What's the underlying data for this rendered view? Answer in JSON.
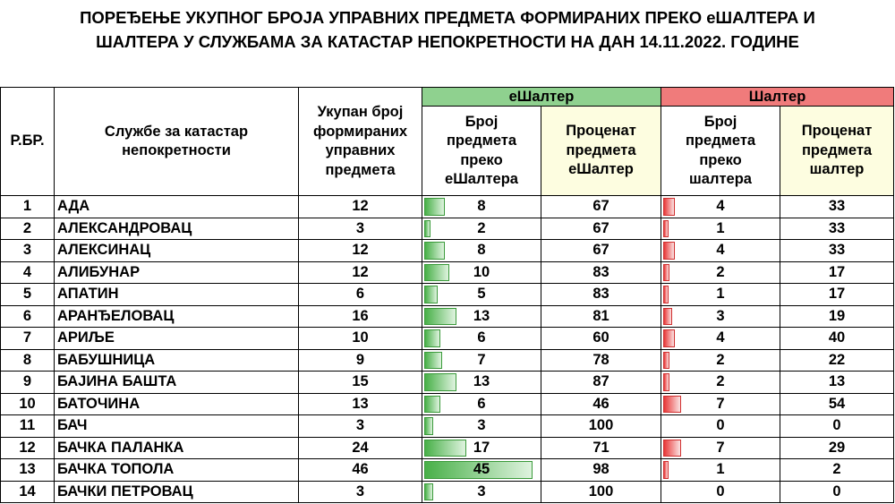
{
  "title_line1": "ПОРЕЂЕЊЕ УКУПНОГ БРОЈА УПРАВНИХ ПРЕДМЕТА ФОРМИРАНИХ ПРЕКО еШАЛТЕРА И",
  "title_line2": "ШАЛТЕРА У СЛУЖБАМА ЗА КАТАСТАР НЕПОКРЕТНОСТИ НА ДАН 14.11.2022. ГОДИНЕ",
  "headers": {
    "rbr": "Р.БР.",
    "office": "Службе за катастар непокретности",
    "total": "Укупан број формираних управних предмета",
    "eshalter_group": "еШалтер",
    "e_count": "Број предмета преко еШалтера",
    "e_percent": "Проценат предмета еШалтер",
    "shalter_group": "Шалтер",
    "s_count": "Број предмета преко шалтера",
    "s_percent": "Проценат предмета шалтер"
  },
  "colors": {
    "green_header": "#8fd18f",
    "red_header": "#f07b7b",
    "yellow_header": "#fdfde0",
    "green_bar": "#48b048",
    "red_bar": "#e83838"
  },
  "rows": [
    {
      "rbr": "1",
      "name": "АДА",
      "total": "12",
      "e_count": "8",
      "e_pct": "67",
      "s_count": "4",
      "s_pct": "33"
    },
    {
      "rbr": "2",
      "name": "АЛЕКСАНДРОВАЦ",
      "total": "3",
      "e_count": "2",
      "e_pct": "67",
      "s_count": "1",
      "s_pct": "33"
    },
    {
      "rbr": "3",
      "name": "АЛЕКСИНАЦ",
      "total": "12",
      "e_count": "8",
      "e_pct": "67",
      "s_count": "4",
      "s_pct": "33"
    },
    {
      "rbr": "4",
      "name": "АЛИБУНАР",
      "total": "12",
      "e_count": "10",
      "e_pct": "83",
      "s_count": "2",
      "s_pct": "17"
    },
    {
      "rbr": "5",
      "name": "АПАТИН",
      "total": "6",
      "e_count": "5",
      "e_pct": "83",
      "s_count": "1",
      "s_pct": "17"
    },
    {
      "rbr": "6",
      "name": "АРАНЂЕЛОВАЦ",
      "total": "16",
      "e_count": "13",
      "e_pct": "81",
      "s_count": "3",
      "s_pct": "19"
    },
    {
      "rbr": "7",
      "name": "АРИЉЕ",
      "total": "10",
      "e_count": "6",
      "e_pct": "60",
      "s_count": "4",
      "s_pct": "40"
    },
    {
      "rbr": "8",
      "name": "БАБУШНИЦА",
      "total": "9",
      "e_count": "7",
      "e_pct": "78",
      "s_count": "2",
      "s_pct": "22"
    },
    {
      "rbr": "9",
      "name": "БАЈИНА БАШТА",
      "total": "15",
      "e_count": "13",
      "e_pct": "87",
      "s_count": "2",
      "s_pct": "13"
    },
    {
      "rbr": "10",
      "name": "БАТОЧИНА",
      "total": "13",
      "e_count": "6",
      "e_pct": "46",
      "s_count": "7",
      "s_pct": "54"
    },
    {
      "rbr": "11",
      "name": "БАЧ",
      "total": "3",
      "e_count": "3",
      "e_pct": "100",
      "s_count": "0",
      "s_pct": "0"
    },
    {
      "rbr": "12",
      "name": "БАЧКА ПАЛАНКА",
      "total": "24",
      "e_count": "17",
      "e_pct": "71",
      "s_count": "7",
      "s_pct": "29"
    },
    {
      "rbr": "13",
      "name": "БАЧКА ТОПОЛА",
      "total": "46",
      "e_count": "45",
      "e_pct": "98",
      "s_count": "1",
      "s_pct": "2"
    },
    {
      "rbr": "14",
      "name": "БАЧКИ ПЕТРОВАЦ",
      "total": "3",
      "e_count": "3",
      "e_pct": "100",
      "s_count": "0",
      "s_pct": "0"
    }
  ]
}
